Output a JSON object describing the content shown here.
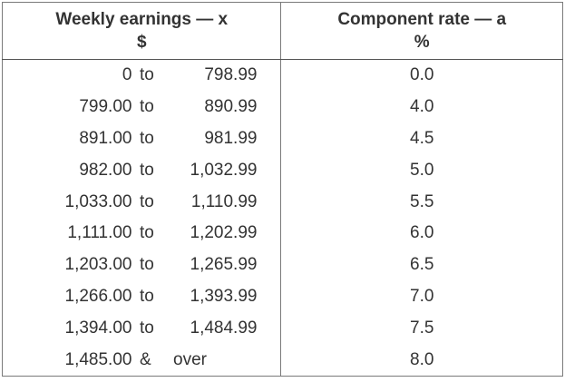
{
  "table": {
    "header": {
      "earnings_title": "Weekly earnings — x",
      "earnings_unit": "$",
      "rate_title": "Component rate — a",
      "rate_unit": "%"
    },
    "rows": [
      {
        "from": "0",
        "sep": "to",
        "to": "798.99",
        "rate": "0.0"
      },
      {
        "from": "799.00",
        "sep": "to",
        "to": "890.99",
        "rate": "4.0"
      },
      {
        "from": "891.00",
        "sep": "to",
        "to": "981.99",
        "rate": "4.5"
      },
      {
        "from": "982.00",
        "sep": "to",
        "to": "1,032.99",
        "rate": "5.0"
      },
      {
        "from": "1,033.00",
        "sep": "to",
        "to": "1,110.99",
        "rate": "5.5"
      },
      {
        "from": "1,111.00",
        "sep": "to",
        "to": "1,202.99",
        "rate": "6.0"
      },
      {
        "from": "1,203.00",
        "sep": "to",
        "to": "1,265.99",
        "rate": "6.5"
      },
      {
        "from": "1,266.00",
        "sep": "to",
        "to": "1,393.99",
        "rate": "7.0"
      },
      {
        "from": "1,394.00",
        "sep": "to",
        "to": "1,484.99",
        "rate": "7.5"
      },
      {
        "from": "1,485.00",
        "sep": "&",
        "to": "over",
        "rate": "8.0"
      }
    ]
  }
}
